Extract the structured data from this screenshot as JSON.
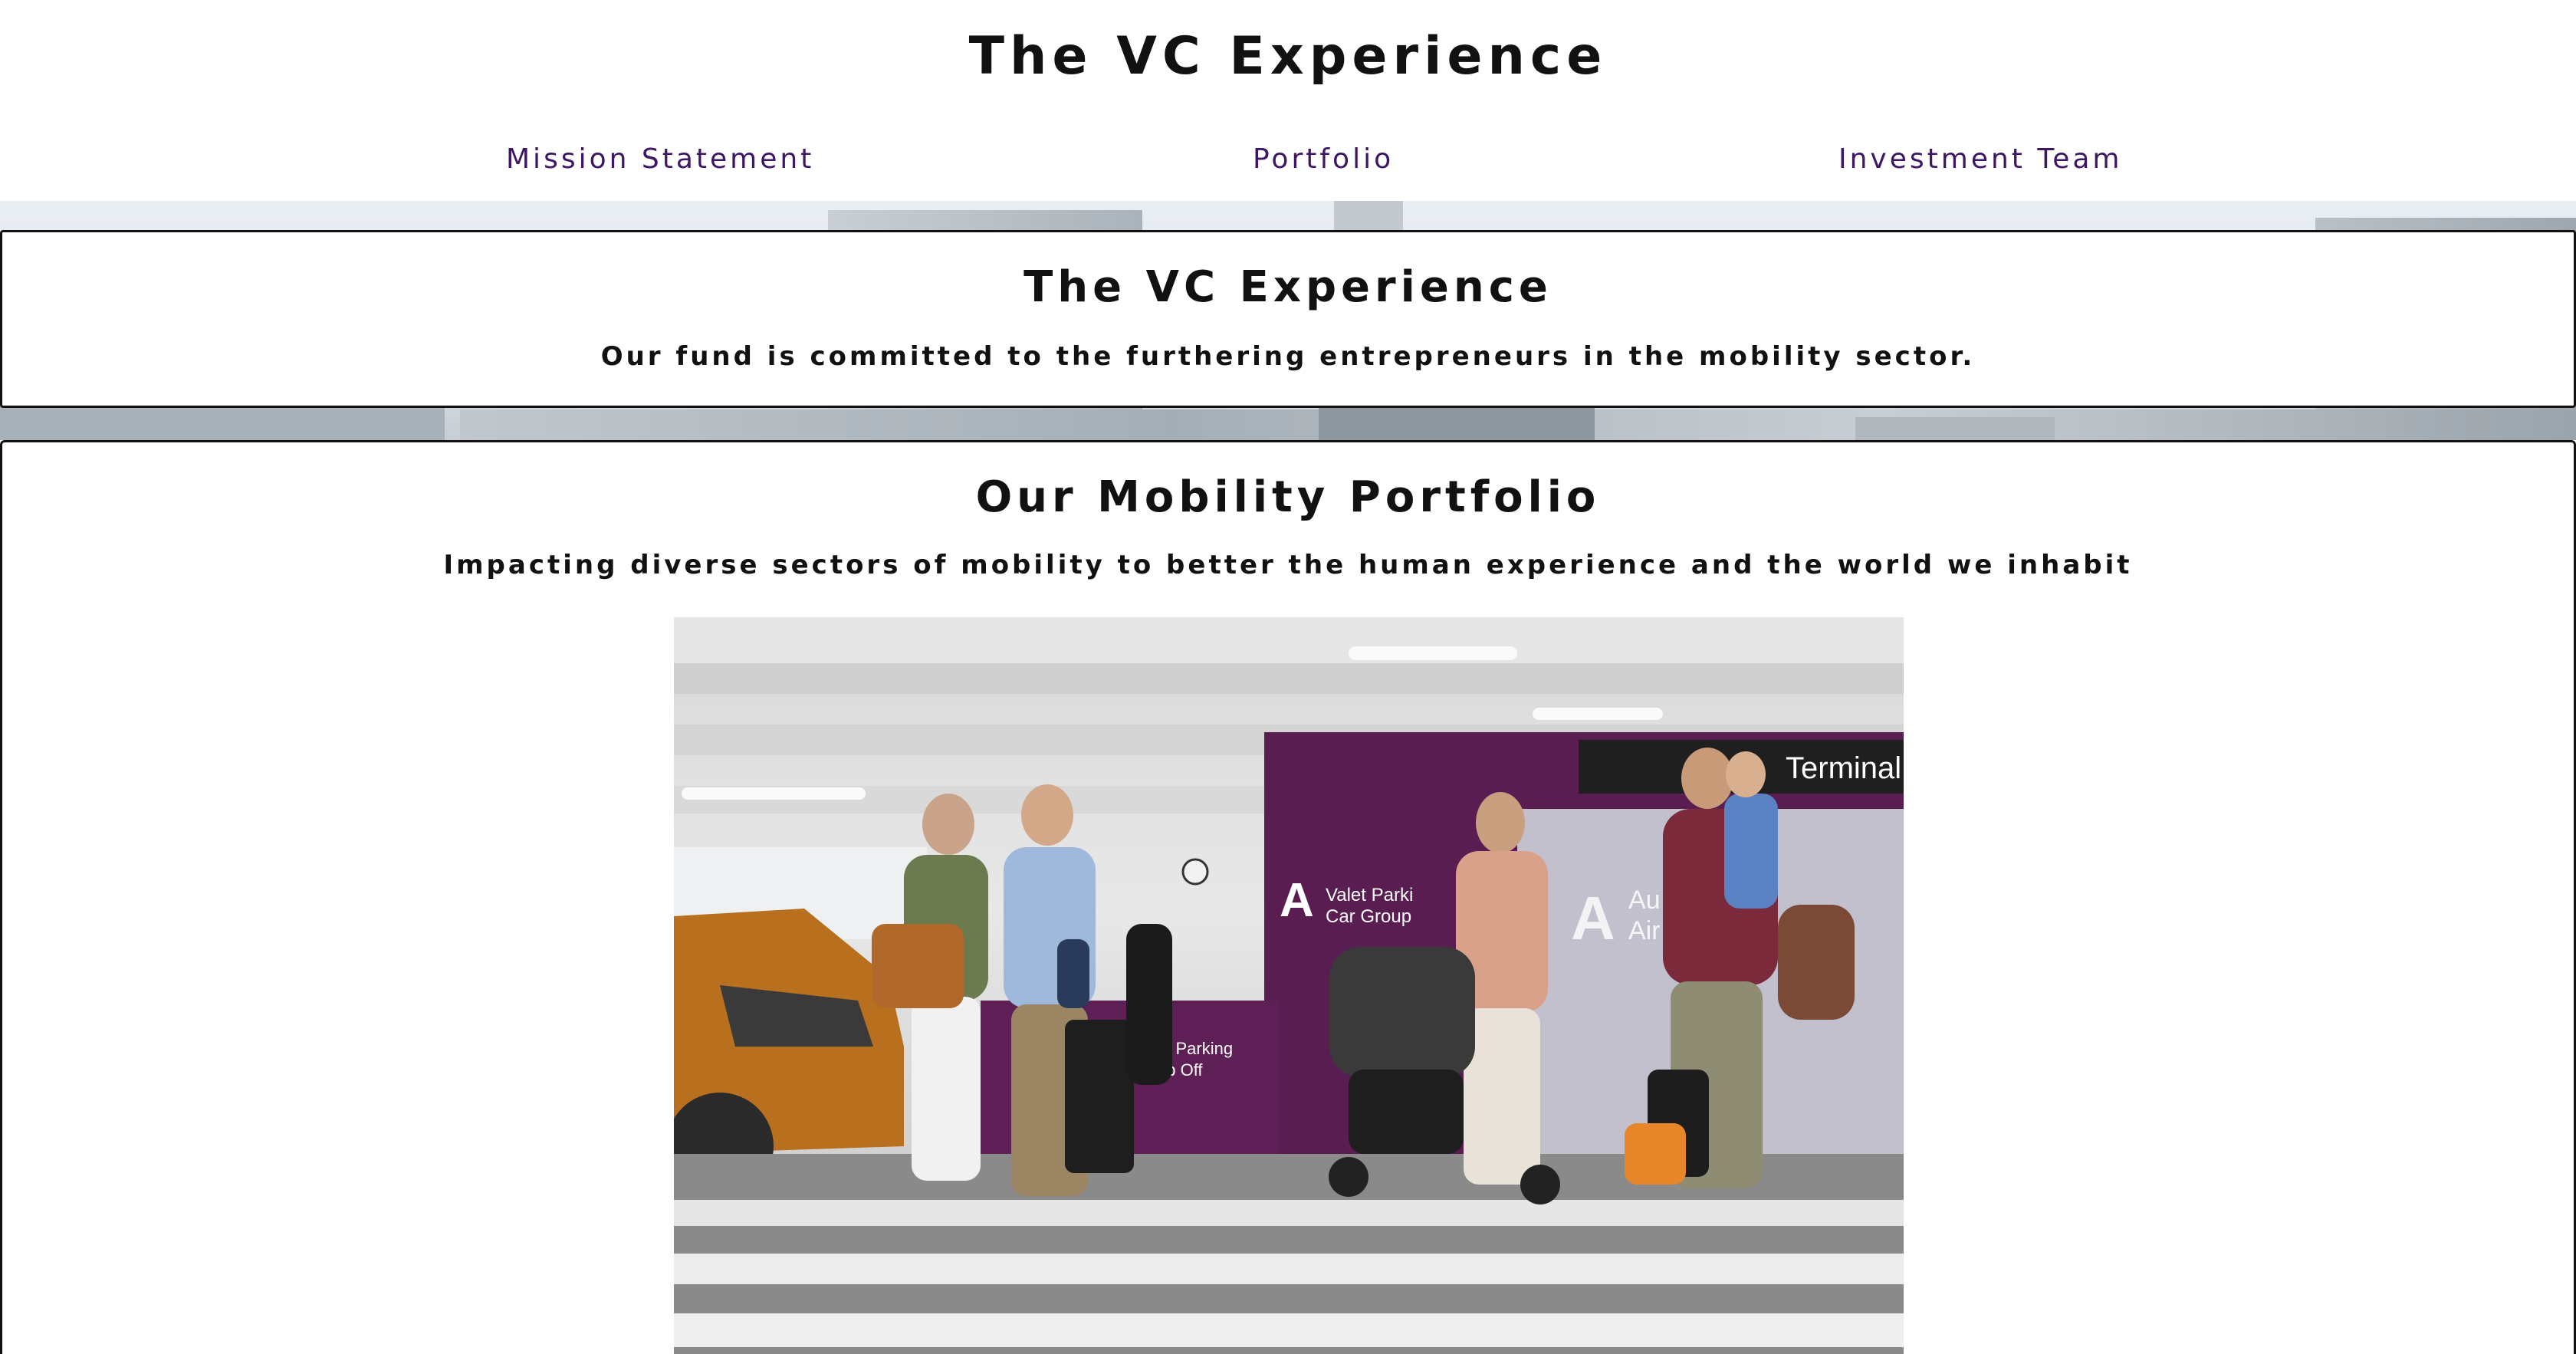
{
  "header": {
    "title": "The VC Experience",
    "nav": [
      {
        "label": "Mission Statement"
      },
      {
        "label": "Portfolio"
      },
      {
        "label": "Investment Team"
      }
    ]
  },
  "hero": {
    "title": "The VC Experience",
    "text": "Our fund is committed to the furthering entrepreneurs in the mobility sector."
  },
  "portfolio": {
    "title": "Our Mobility Portfolio",
    "text": "Impacting diverse sectors of mobility to better the human experience and the world we inhabit",
    "photo_signs": {
      "terminal": "Terminal",
      "valet_main": "Valet Parki",
      "valet_sub": "Car Group",
      "desk_line1": "et Parking",
      "desk_line2": "op Off",
      "airport_line1": "Au",
      "airport_line2": "Air"
    }
  },
  "colors": {
    "nav_link": "#3d1666",
    "brand_purple": "#5a1d52",
    "border": "#111111"
  }
}
